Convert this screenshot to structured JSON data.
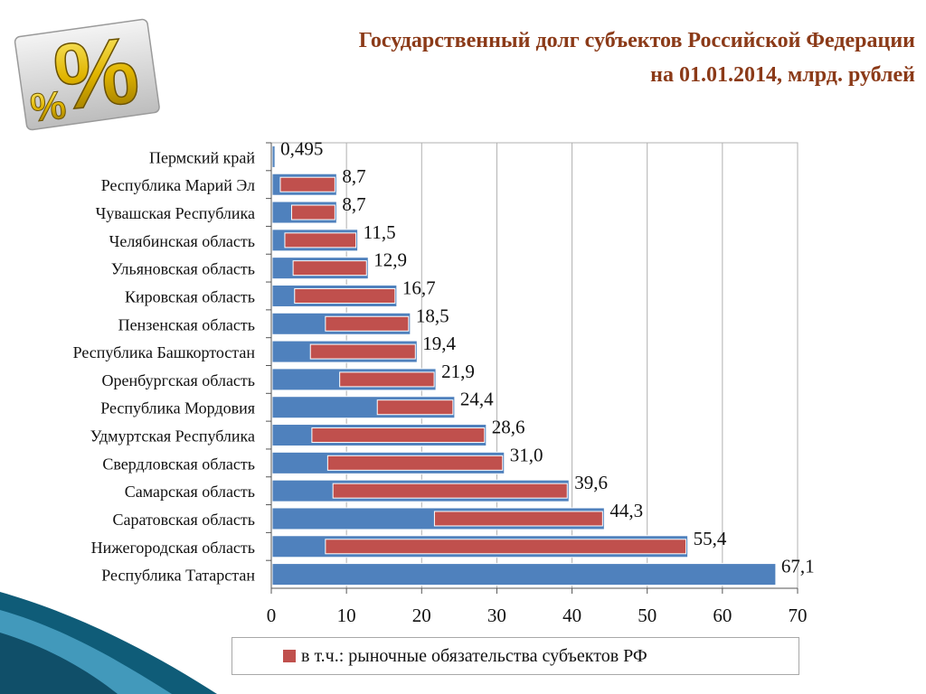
{
  "title": {
    "line1": "Государственный долг субъектов Российской Федерации",
    "line2": "на 01.01.2014, млрд. рублей"
  },
  "logo": {
    "glyph_large": "%",
    "glyph_small": "%"
  },
  "colors": {
    "total_bar": "#4F81BD",
    "market_bar": "#C0504D",
    "title": "#8B3A18",
    "grid": "#B0B0B0",
    "deco_dark": "#0F5C78",
    "deco_light": "#4BA3C7"
  },
  "legend": {
    "market_label": "в т.ч.: рыночные обязательства субъектов РФ"
  },
  "chart_data": {
    "type": "bar",
    "orientation": "horizontal",
    "title": "Государственный долг субъектов Российской Федерации на 01.01.2014, млрд. рублей",
    "categories": [
      "Пермский край",
      "Республика Марий Эл",
      "Чувашская Республика",
      "Челябинская область",
      "Ульяновская область",
      "Кировская область",
      "Пензенская область",
      "Республика Башкортостан",
      "Оренбургская область",
      "Республика Мордовия",
      "Удмуртская Республика",
      "Свердловская область",
      "Самарская область",
      "Саратовская область",
      "Нижегородская область",
      "Республика Татарстан"
    ],
    "series": [
      {
        "name": "Государственный долг",
        "values": [
          0.495,
          8.7,
          8.7,
          11.5,
          12.9,
          16.7,
          18.5,
          19.4,
          21.9,
          24.4,
          28.6,
          31.0,
          39.6,
          44.3,
          55.4,
          67.1
        ],
        "labels": [
          "0,495",
          "8,7",
          "8,7",
          "11,5",
          "12,9",
          "16,7",
          "18,5",
          "19,4",
          "21,9",
          "24,4",
          "28,6",
          "31,0",
          "39,6",
          "44,3",
          "55,4",
          "67,1"
        ]
      },
      {
        "name": "в т.ч.: рыночные обязательства субъектов РФ",
        "values": [
          0,
          7.5,
          6.0,
          9.7,
          10.0,
          13.6,
          11.3,
          14.2,
          12.8,
          10.3,
          23.2,
          23.5,
          31.4,
          22.6,
          48.2,
          0
        ]
      }
    ],
    "xlim": [
      0,
      70
    ],
    "xticks": [
      "0",
      "10",
      "20",
      "30",
      "40",
      "50",
      "60",
      "70"
    ],
    "xtick_values": [
      0,
      10,
      20,
      30,
      40,
      50,
      60,
      70
    ],
    "grid": true,
    "legend_position": "bottom"
  }
}
